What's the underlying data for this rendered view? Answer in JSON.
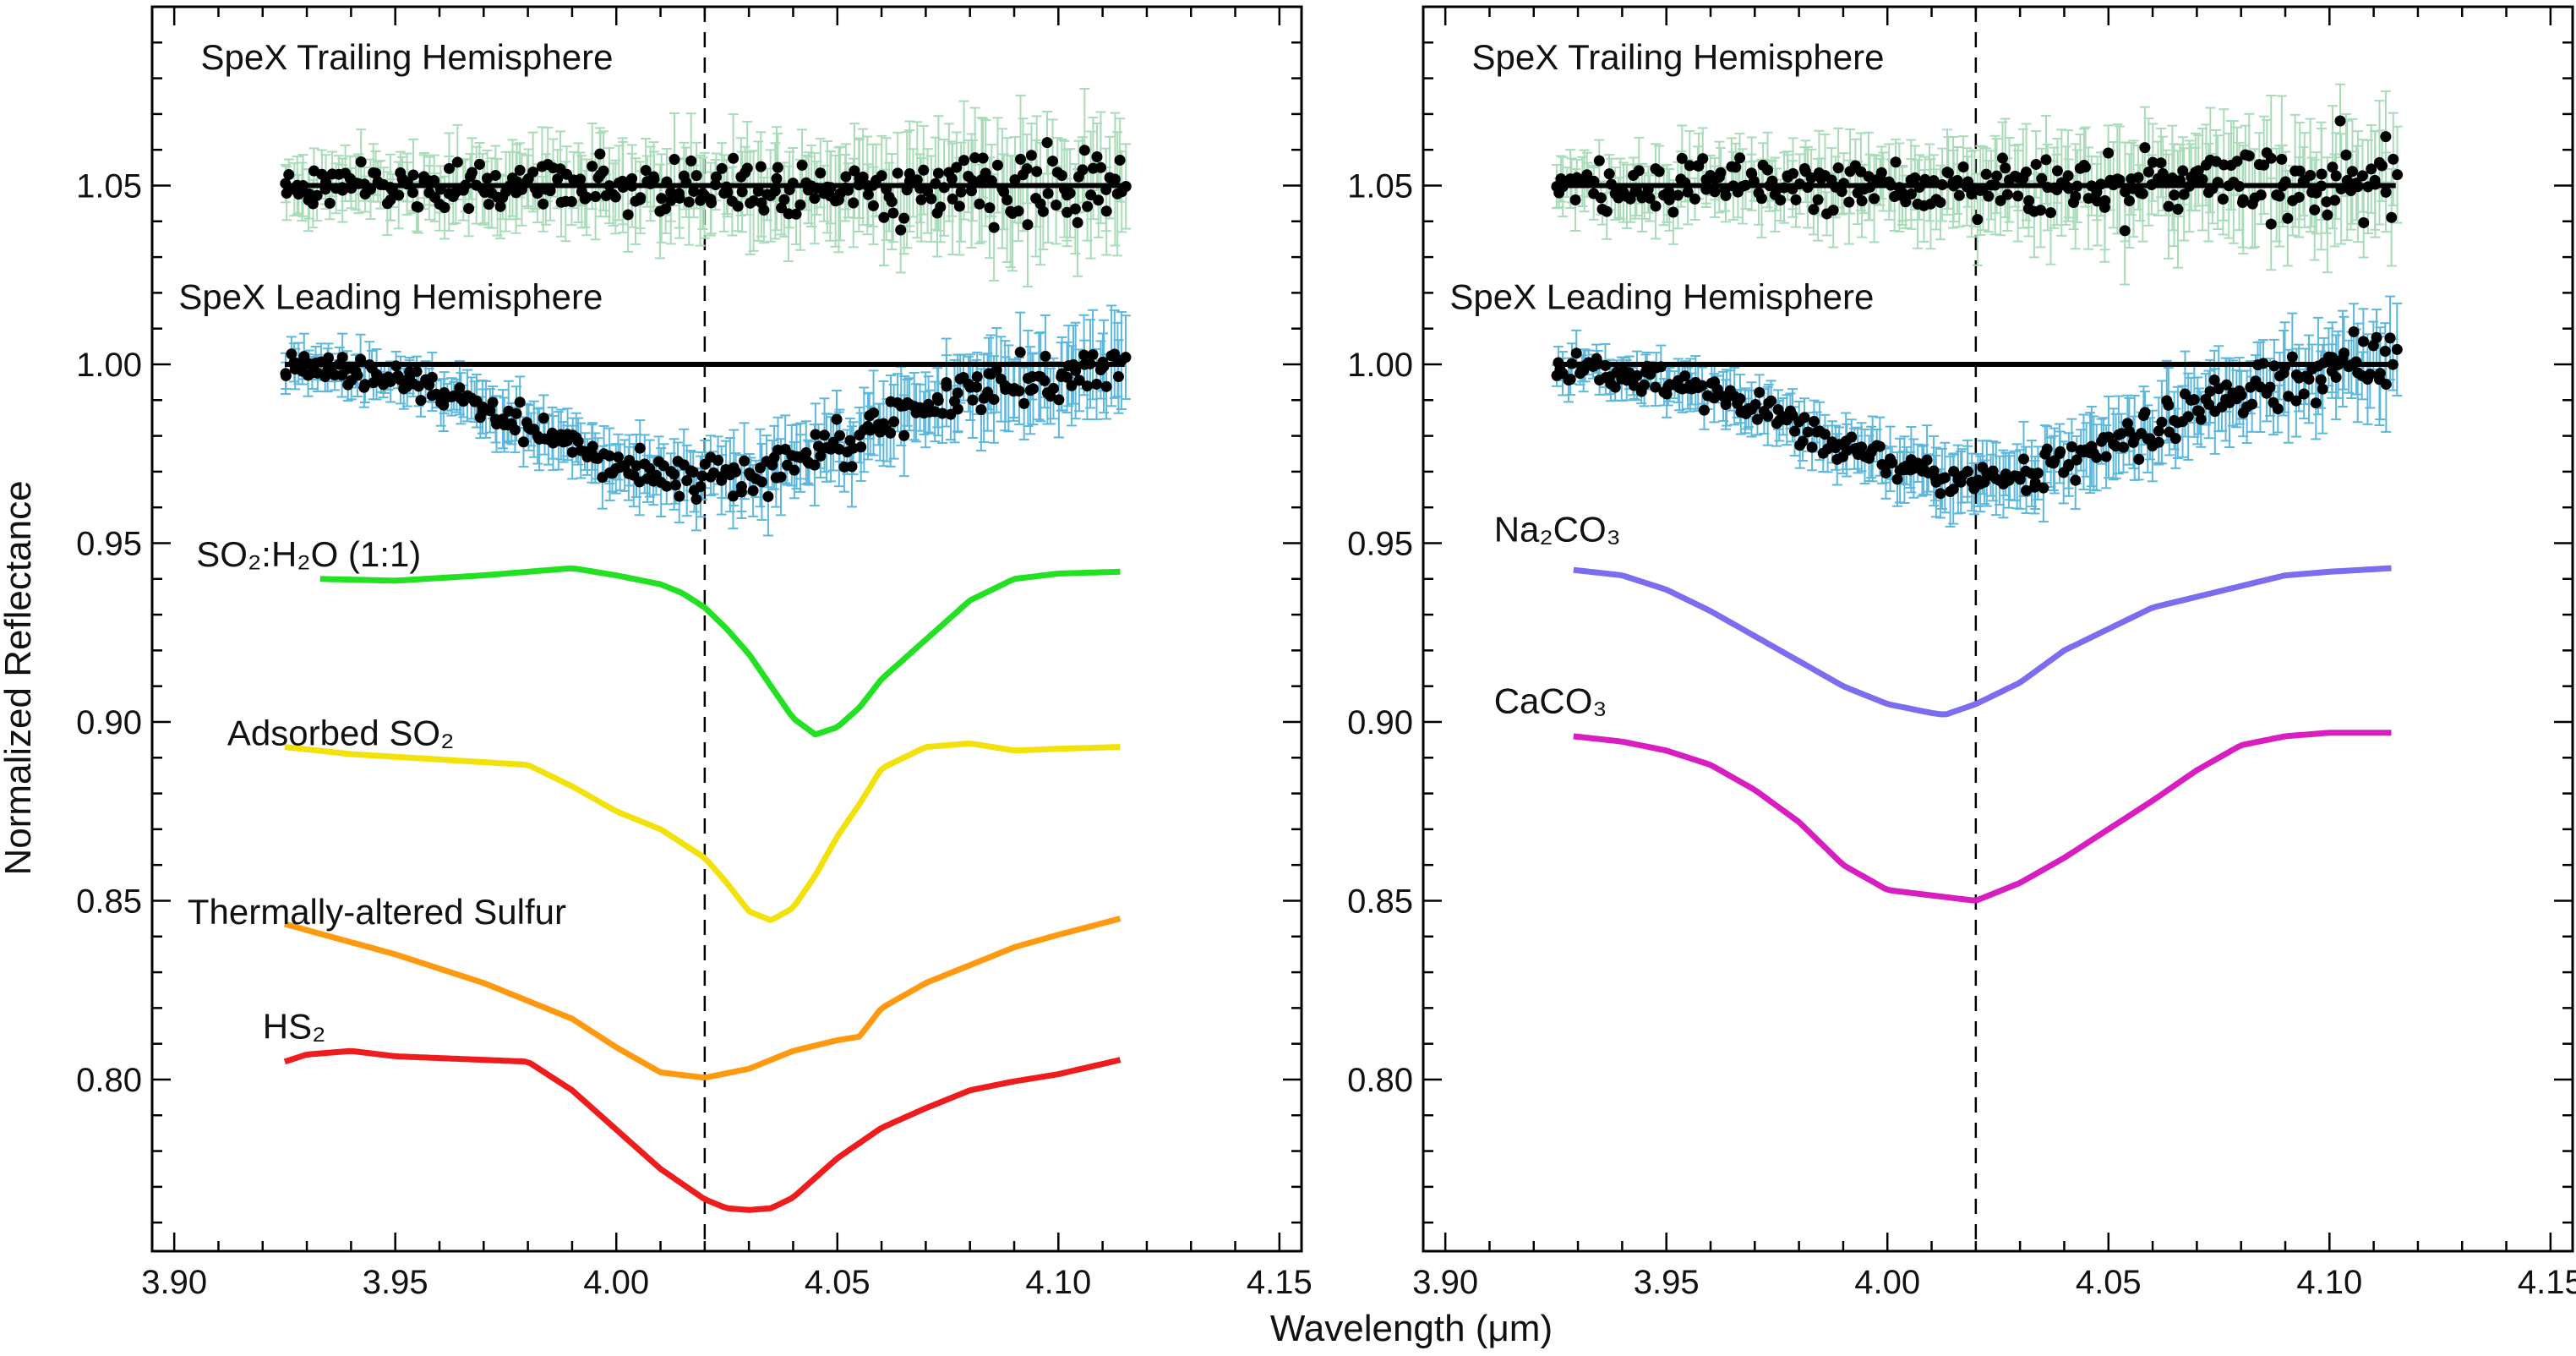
{
  "figure": {
    "xlabel": "Wavelength (μm)",
    "ylabel": "Normalized Reflectance",
    "x_ticks": [
      "3.90",
      "3.95",
      "4.00",
      "4.05",
      "4.10",
      "4.15"
    ],
    "y_ticks": [
      "0.80",
      "0.85",
      "0.90",
      "0.95",
      "1.00",
      "1.05"
    ]
  },
  "chart_data": [
    {
      "type": "line",
      "panel": "left",
      "xlabel": "Wavelength (μm)",
      "ylabel": "Normalized Reflectance",
      "xlim": [
        3.895,
        4.155
      ],
      "ylim": [
        0.752,
        1.1
      ],
      "x_ticks": [
        3.9,
        3.95,
        4.0,
        4.05,
        4.1,
        4.15
      ],
      "y_ticks": [
        0.8,
        0.85,
        0.9,
        0.95,
        1.0,
        1.05
      ],
      "vline_x": 4.02,
      "grid": false,
      "spectra": [
        {
          "name": "SpeX Trailing Hemisphere",
          "baseline": 1.05,
          "depth": 0.0,
          "center": 4.02,
          "width": 0.03,
          "noise_low": 0.006,
          "noise_high": 0.012,
          "err": 0.008,
          "color": "#000000",
          "errcolor": "#a8dcb8"
        },
        {
          "name": "SpeX Leading Hemisphere",
          "baseline": 1.0,
          "depth": 0.032,
          "center": 4.02,
          "width": 0.036,
          "noise_low": 0.004,
          "noise_high": 0.008,
          "err": 0.006,
          "color": "#000000",
          "errcolor": "#5bb8dc"
        }
      ],
      "series": [
        {
          "name": "SO₂:H₂O (1:1)",
          "color": "#22e022",
          "x": [
            3.933,
            3.95,
            3.97,
            3.99,
            4.0,
            4.01,
            4.015,
            4.02,
            4.025,
            4.03,
            4.035,
            4.04,
            4.045,
            4.05,
            4.055,
            4.06,
            4.07,
            4.08,
            4.09,
            4.1,
            4.114
          ],
          "y": [
            0.94,
            0.9395,
            0.941,
            0.943,
            0.941,
            0.9385,
            0.936,
            0.932,
            0.926,
            0.919,
            0.91,
            0.901,
            0.8965,
            0.8985,
            0.904,
            0.912,
            0.923,
            0.934,
            0.94,
            0.9415,
            0.942
          ]
        },
        {
          "name": "Adsorbed SO₂",
          "color": "#f2e20a",
          "x": [
            3.925,
            3.94,
            3.96,
            3.98,
            3.99,
            4.0,
            4.01,
            4.02,
            4.025,
            4.03,
            4.035,
            4.04,
            4.045,
            4.05,
            4.055,
            4.06,
            4.07,
            4.08,
            4.09,
            4.1,
            4.114
          ],
          "y": [
            0.893,
            0.891,
            0.8895,
            0.888,
            0.882,
            0.875,
            0.87,
            0.862,
            0.855,
            0.847,
            0.8445,
            0.848,
            0.857,
            0.868,
            0.877,
            0.887,
            0.893,
            0.894,
            0.892,
            0.8925,
            0.893
          ]
        },
        {
          "name": "Thermally-altered Sulfur",
          "color": "#ff9a10",
          "x": [
            3.925,
            3.95,
            3.97,
            3.99,
            4.0,
            4.01,
            4.02,
            4.03,
            4.04,
            4.05,
            4.055,
            4.06,
            4.07,
            4.08,
            4.09,
            4.1,
            4.114
          ],
          "y": [
            0.8435,
            0.835,
            0.827,
            0.817,
            0.809,
            0.802,
            0.8005,
            0.803,
            0.808,
            0.811,
            0.812,
            0.82,
            0.827,
            0.832,
            0.837,
            0.8405,
            0.845
          ]
        },
        {
          "name": "HS₂",
          "color": "#ee1c1c",
          "x": [
            3.925,
            3.93,
            3.94,
            3.95,
            3.96,
            3.97,
            3.98,
            3.99,
            4.0,
            4.01,
            4.02,
            4.025,
            4.03,
            4.035,
            4.04,
            4.05,
            4.06,
            4.07,
            4.08,
            4.09,
            4.1,
            4.114
          ],
          "y": [
            0.805,
            0.807,
            0.808,
            0.8065,
            0.806,
            0.8055,
            0.805,
            0.797,
            0.786,
            0.775,
            0.7665,
            0.764,
            0.7635,
            0.764,
            0.767,
            0.778,
            0.7865,
            0.792,
            0.797,
            0.7995,
            0.8015,
            0.8055
          ]
        }
      ],
      "labels": [
        {
          "text": "SpeX Trailing Hemisphere",
          "x": 3.906,
          "y": 1.0825
        },
        {
          "text": "SpeX Leading Hemisphere",
          "x": 3.901,
          "y": 1.0155
        },
        {
          "text": "SO₂:H₂O (1:1)",
          "x": 3.905,
          "y": 0.9435
        },
        {
          "text": "Adsorbed SO₂",
          "x": 3.912,
          "y": 0.8935
        },
        {
          "text": "Thermally-altered Sulfur",
          "x": 3.903,
          "y": 0.8435
        },
        {
          "text": "HS₂",
          "x": 3.92,
          "y": 0.8115
        }
      ]
    },
    {
      "type": "line",
      "panel": "right",
      "xlabel": "Wavelength (μm)",
      "xlim": [
        3.895,
        4.155
      ],
      "ylim": [
        0.752,
        1.1
      ],
      "x_ticks": [
        3.9,
        3.95,
        4.0,
        4.05,
        4.1,
        4.15
      ],
      "y_ticks": [
        0.8,
        0.85,
        0.9,
        0.95,
        1.0,
        1.05
      ],
      "vline_x": 4.02,
      "grid": false,
      "spectra": [
        {
          "name": "SpeX Trailing Hemisphere",
          "baseline": 1.05,
          "depth": 0.0,
          "center": 4.02,
          "width": 0.03,
          "noise_low": 0.006,
          "noise_high": 0.012,
          "err": 0.008,
          "color": "#000000",
          "errcolor": "#a8dcb8"
        },
        {
          "name": "SpeX Leading Hemisphere",
          "baseline": 1.0,
          "depth": 0.032,
          "center": 4.02,
          "width": 0.036,
          "noise_low": 0.004,
          "noise_high": 0.008,
          "err": 0.006,
          "color": "#000000",
          "errcolor": "#5bb8dc"
        }
      ],
      "series": [
        {
          "name": "Na₂CO₃",
          "color": "#7b6cf0",
          "x": [
            3.929,
            3.94,
            3.95,
            3.96,
            3.97,
            3.98,
            3.99,
            4.0,
            4.01,
            4.013,
            4.02,
            4.03,
            4.04,
            4.05,
            4.06,
            4.07,
            4.08,
            4.09,
            4.1,
            4.114
          ],
          "y": [
            0.9425,
            0.941,
            0.937,
            0.931,
            0.924,
            0.917,
            0.91,
            0.905,
            0.9025,
            0.902,
            0.905,
            0.911,
            0.92,
            0.926,
            0.932,
            0.935,
            0.938,
            0.941,
            0.942,
            0.943
          ]
        },
        {
          "name": "CaCO₃",
          "color": "#d81ec0",
          "x": [
            3.929,
            3.94,
            3.95,
            3.96,
            3.97,
            3.98,
            3.99,
            4.0,
            4.01,
            4.02,
            4.03,
            4.04,
            4.05,
            4.06,
            4.07,
            4.08,
            4.09,
            4.1,
            4.114
          ],
          "y": [
            0.896,
            0.8945,
            0.892,
            0.888,
            0.881,
            0.872,
            0.86,
            0.853,
            0.8515,
            0.85,
            0.855,
            0.862,
            0.87,
            0.878,
            0.8865,
            0.8935,
            0.896,
            0.897,
            0.897
          ]
        }
      ],
      "labels": [
        {
          "text": "SpeX Trailing Hemisphere",
          "x": 3.906,
          "y": 1.0825
        },
        {
          "text": "SpeX Leading Hemisphere",
          "x": 3.901,
          "y": 1.0155
        },
        {
          "text": "Na₂CO₃",
          "x": 3.911,
          "y": 0.9505
        },
        {
          "text": "CaCO₃",
          "x": 3.911,
          "y": 0.9025
        }
      ]
    }
  ]
}
